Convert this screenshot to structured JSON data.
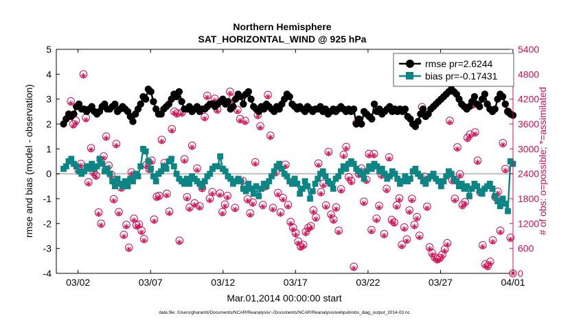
{
  "chart_data": {
    "type": "line",
    "title": "Northern Hemisphere",
    "subtitle": "SAT_HORIZONTAL_WIND @ 925 hPa",
    "xlabel": "Mar.01,2014 00:00:00 start",
    "ylabel_left": "rmse and bias (model - observation)",
    "ylabel_right": "# of obs: o=possible; *=assimilated",
    "footnote": "data file: /Users/gharamti/Documents/NCAR/Reanalysis/~/Documents/NCAR/Reanalysis/webpub/obs_diag_output_2014-03.nc",
    "xlim": [
      0.5,
      32
    ],
    "ylim_left": [
      -4,
      5
    ],
    "ylim_right": [
      0,
      5400
    ],
    "x_ticks": [
      {
        "x": 2,
        "label": "03/02"
      },
      {
        "x": 7,
        "label": "03/07"
      },
      {
        "x": 12,
        "label": "03/12"
      },
      {
        "x": 17,
        "label": "03/17"
      },
      {
        "x": 22,
        "label": "03/22"
      },
      {
        "x": 27,
        "label": "03/27"
      },
      {
        "x": 32,
        "label": "04/01"
      }
    ],
    "y_ticks_left": [
      -4,
      -3,
      -2,
      -1,
      0,
      1,
      2,
      3,
      4,
      5
    ],
    "y_ticks_right": [
      0,
      600,
      1200,
      1800,
      2400,
      3000,
      3600,
      4200,
      4800,
      5400
    ],
    "legend": {
      "position": "top-right",
      "entries": [
        {
          "label": "rmse pr=2.6244",
          "series": "rmse"
        },
        {
          "label": "bias pr=-0.17431",
          "series": "bias"
        }
      ]
    },
    "colors": {
      "rmse": "#000000",
      "bias": "#0e8585",
      "obs": "#d10c52",
      "zero_line": "#bdbdbd",
      "right_axis": "#d10c52"
    },
    "series": [
      {
        "name": "rmse",
        "marker": "circle",
        "values": [
          2.0,
          2.2,
          2.4,
          2.3,
          2.4,
          2.7,
          2.8,
          2.6,
          2.6,
          2.5,
          2.6,
          2.7,
          2.5,
          2.4,
          2.5,
          2.7,
          2.8,
          2.6,
          2.6,
          2.7,
          2.8,
          2.5,
          2.6,
          2.7,
          2.6,
          2.5,
          2.3,
          2.1,
          2.4,
          2.6,
          2.8,
          3.1,
          3.0,
          3.4,
          3.3,
          2.9,
          2.6,
          2.4,
          2.4,
          2.6,
          2.7,
          2.8,
          3.0,
          3.2,
          3.1,
          3.3,
          2.9,
          2.6,
          2.6,
          2.7,
          2.5,
          2.6,
          2.7,
          2.5,
          2.6,
          2.6,
          2.7,
          2.8,
          2.8,
          2.7,
          2.8,
          2.9,
          3.0,
          2.8,
          2.9,
          2.6,
          2.7,
          3.0,
          3.2,
          3.1,
          2.8,
          3.2,
          3.3,
          3.0,
          2.7,
          2.6,
          2.5,
          2.7,
          2.6,
          2.8,
          2.7,
          2.6,
          2.5,
          2.7,
          2.6,
          2.8,
          3.0,
          3.2,
          3.1,
          2.8,
          2.7,
          2.6,
          2.7,
          2.6,
          2.5,
          2.7,
          2.6,
          2.5,
          2.6,
          2.6,
          2.7,
          2.5,
          2.6,
          2.4,
          2.5,
          2.6,
          2.5,
          2.6,
          2.7,
          2.6,
          2.5,
          2.6,
          2.5,
          2.6,
          2.0,
          2.2,
          2.0,
          2.5,
          2.4,
          2.3,
          2.2,
          2.8,
          2.5,
          2.6,
          2.4,
          2.5,
          2.6,
          2.7,
          2.5,
          2.6,
          2.5,
          2.6,
          2.5,
          2.6,
          2.3,
          2.2,
          2.0,
          1.9,
          2.1,
          2.4,
          2.6,
          2.3,
          2.4,
          2.6,
          2.7,
          2.8,
          2.9,
          3.0,
          3.1,
          3.2,
          3.3,
          3.4,
          3.3,
          3.2,
          3.0,
          2.8,
          2.7,
          2.6,
          2.7,
          2.9,
          3.1,
          2.8,
          2.7,
          3.0,
          3.2,
          2.8,
          2.6,
          2.5,
          2.6,
          3.0,
          3.2,
          3.1,
          2.8,
          2.5,
          2.4,
          2.35
        ]
      },
      {
        "name": "bias",
        "marker": "square",
        "values": [
          0.2,
          0.3,
          0.5,
          0.6,
          0.4,
          0.3,
          0.1,
          0.0,
          0.1,
          0.3,
          0.2,
          0.4,
          0.2,
          0.3,
          0.6,
          0.4,
          0.1,
          0.2,
          0.0,
          -0.3,
          -0.5,
          -0.2,
          -0.4,
          -0.5,
          -0.3,
          -0.5,
          -0.2,
          -0.3,
          0.0,
          -0.1,
          0.3,
          1.0,
          0.9,
          0.5,
          0.2,
          -0.1,
          -0.3,
          0.0,
          0.1,
          0.3,
          0.2,
          0.5,
          0.6,
          0.3,
          0.0,
          -0.2,
          -0.3,
          -0.4,
          -0.2,
          -0.4,
          -0.1,
          -0.2,
          -0.3,
          -0.4,
          -0.5,
          -0.3,
          -0.1,
          0.0,
          0.2,
          0.3,
          0.3,
          0.7,
          0.2,
          0.1,
          -0.1,
          -0.2,
          -0.4,
          -0.3,
          -0.2,
          -0.3,
          -0.6,
          -0.7,
          -0.4,
          -0.6,
          -0.8,
          -0.5,
          -0.9,
          -0.6,
          -0.4,
          -0.5,
          -0.3,
          -0.1,
          0.1,
          0.3,
          0.4,
          0.2,
          0.0,
          -0.1,
          -0.3,
          -0.4,
          -0.2,
          -0.4,
          -0.8,
          -0.6,
          -0.3,
          -0.5,
          -1.0,
          -0.7,
          -0.4,
          -0.2,
          0.0,
          0.1,
          -0.1,
          -0.3,
          -0.4,
          -0.6,
          -0.2,
          -0.1,
          0.1,
          0.3,
          0.2,
          0.4,
          0.5,
          0.4,
          0.2,
          0.1,
          0.0,
          -0.2,
          0.1,
          0.3,
          0.2,
          0.4,
          0.3,
          0.1,
          0.2,
          0.0,
          -0.2,
          -0.1,
          0.1,
          0.0,
          -0.2,
          -0.4,
          -0.3,
          -0.1,
          -0.3,
          -0.2,
          0.1,
          0.2,
          0.0,
          -0.1,
          -0.3,
          -0.4,
          -0.2,
          -0.1,
          0.0,
          -0.2,
          -0.3,
          -0.5,
          -0.3,
          -0.1,
          0.1,
          0.0,
          -0.2,
          -0.3,
          -0.5,
          -0.4,
          -0.6,
          -0.5,
          -0.9,
          -0.6,
          -0.4,
          -0.5,
          -0.7,
          -0.8,
          -0.6,
          -0.5,
          -0.4,
          -0.6,
          -0.9,
          -1.1,
          -1.3,
          -1.0,
          -1.2,
          -1.5,
          0.5,
          0.4
        ]
      }
    ],
    "obs_counts": {
      "possible": [
        4150,
        3600,
        3680,
        2500,
        2640,
        4800,
        3750,
        2200,
        3020,
        2440,
        2360,
        1470,
        1200,
        2820,
        3300,
        2600,
        2380,
        1790,
        3120,
        1480,
        2070,
        930,
        1170,
        620,
        2440,
        1320,
        1160,
        1180,
        1030,
        830,
        2620,
        2520,
        2720,
        1300,
        1850,
        1870,
        3220,
        2660,
        1920,
        1490,
        3480,
        3900,
        3860,
        790,
        3880,
        2750,
        1840,
        1590,
        3080,
        1690,
        2530,
        1620,
        2060,
        3770,
        4280,
        1800,
        1960,
        4210,
        3950,
        1930,
        1480,
        1660,
        1870,
        4380,
        4210,
        1580,
        3940,
        3720,
        2230,
        3680,
        1790,
        1450,
        1710,
        2680,
        3820,
        3550,
        1650,
        2100,
        4300,
        3320,
        1580,
        2440,
        1940,
        1470,
        1820,
        2620,
        1650,
        1240,
        1100,
        970,
        770,
        650,
        690,
        1000,
        1100,
        1140,
        1520,
        1350,
        2650,
        1960,
        2160,
        1640,
        2930,
        1420,
        1300,
        1590,
        1030,
        2030,
        2860,
        3050,
        2320,
        2230,
        160,
        3620,
        2400,
        2530,
        1730,
        2260,
        2880,
        1050,
        2880,
        1320,
        1630,
        2380,
        950,
        2040,
        2800,
        1290,
        1230,
        1640,
        1810,
        690,
        1110,
        820,
        1520,
        1800,
        1170,
        1360,
        910,
        4010,
        2330,
        1610,
        630,
        490,
        390,
        340,
        370,
        450,
        580,
        730,
        3680,
        2250,
        1800,
        3040,
        2390,
        1650,
        1720,
        3270,
        3350,
        4070,
        3400,
        2720,
        1960,
        680,
        220,
        180,
        280,
        800,
        1840,
        1970,
        1030,
        3140,
        2520,
        3900,
        860,
        0
      ],
      "assimilated": [
        4100,
        3550,
        3620,
        2460,
        2600,
        4760,
        3700,
        2160,
        2980,
        2400,
        2320,
        1430,
        1160,
        2780,
        3260,
        2560,
        2340,
        1750,
        3080,
        1440,
        2030,
        890,
        1130,
        580,
        2400,
        1280,
        1120,
        1140,
        990,
        790,
        2580,
        2480,
        2680,
        1260,
        1810,
        1830,
        3180,
        2620,
        1880,
        1450,
        3440,
        3860,
        3820,
        750,
        3840,
        2710,
        1800,
        1550,
        3040,
        1650,
        2490,
        1580,
        2020,
        3730,
        4240,
        1760,
        1920,
        4170,
        3910,
        1890,
        1440,
        1620,
        1830,
        4340,
        4170,
        1540,
        3900,
        3680,
        2190,
        3640,
        1750,
        1410,
        1670,
        2640,
        3780,
        3510,
        1610,
        2060,
        4260,
        3280,
        1540,
        2400,
        1900,
        1430,
        1780,
        2580,
        1610,
        1200,
        1060,
        930,
        730,
        610,
        650,
        960,
        1060,
        1100,
        1480,
        1310,
        2610,
        1920,
        2120,
        1600,
        2890,
        1380,
        1260,
        1550,
        990,
        1990,
        2820,
        3010,
        2280,
        2190,
        120,
        3580,
        2360,
        2490,
        1690,
        2220,
        2840,
        1010,
        2840,
        1280,
        1590,
        2340,
        910,
        2000,
        2760,
        1250,
        1190,
        1600,
        1770,
        650,
        1070,
        780,
        1480,
        1760,
        1130,
        1320,
        870,
        3970,
        2290,
        1570,
        590,
        450,
        350,
        300,
        330,
        410,
        540,
        690,
        3640,
        2210,
        1760,
        3000,
        2350,
        1610,
        1680,
        3230,
        3310,
        4030,
        3360,
        2680,
        1920,
        640,
        180,
        140,
        240,
        760,
        1800,
        1930,
        990,
        3100,
        2480,
        3860,
        820,
        0
      ]
    }
  }
}
